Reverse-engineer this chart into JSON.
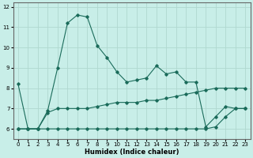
{
  "title": "",
  "xlabel": "Humidex (Indice chaleur)",
  "ylabel": "",
  "background_color": "#c8eee8",
  "grid_color": "#b0d8d0",
  "line_color": "#1a6b5a",
  "xlim": [
    -0.5,
    23.5
  ],
  "ylim": [
    5.5,
    12.2
  ],
  "yticks": [
    6,
    7,
    8,
    9,
    10,
    11,
    12
  ],
  "xticks": [
    0,
    1,
    2,
    3,
    4,
    5,
    6,
    7,
    8,
    9,
    10,
    11,
    12,
    13,
    14,
    15,
    16,
    17,
    18,
    19,
    20,
    21,
    22,
    23
  ],
  "series1_x": [
    0,
    1,
    2,
    3,
    4,
    5,
    6,
    7,
    8,
    9,
    10,
    11,
    12,
    13,
    14,
    15,
    16,
    17,
    18,
    19,
    20,
    21,
    22,
    23
  ],
  "series1_y": [
    8.2,
    6.0,
    6.0,
    6.9,
    9.0,
    11.2,
    11.6,
    11.5,
    10.1,
    9.5,
    8.8,
    8.3,
    8.4,
    8.5,
    9.1,
    8.7,
    8.8,
    8.3,
    8.3,
    6.1,
    6.6,
    7.1,
    7.0,
    7.0
  ],
  "series2_x": [
    0,
    1,
    2,
    3,
    4,
    5,
    6,
    7,
    8,
    9,
    10,
    11,
    12,
    13,
    14,
    15,
    16,
    17,
    18,
    19,
    20,
    21,
    22,
    23
  ],
  "series2_y": [
    6.0,
    6.0,
    6.0,
    6.8,
    7.0,
    7.0,
    7.0,
    7.0,
    7.1,
    7.2,
    7.3,
    7.3,
    7.3,
    7.4,
    7.4,
    7.5,
    7.6,
    7.7,
    7.8,
    7.9,
    8.0,
    8.0,
    8.0,
    8.0
  ],
  "series3_x": [
    0,
    1,
    2,
    3,
    4,
    5,
    6,
    7,
    8,
    9,
    10,
    11,
    12,
    13,
    14,
    15,
    16,
    17,
    18,
    19,
    20,
    21,
    22,
    23
  ],
  "series3_y": [
    6.0,
    6.0,
    6.0,
    6.0,
    6.0,
    6.0,
    6.0,
    6.0,
    6.0,
    6.0,
    6.0,
    6.0,
    6.0,
    6.0,
    6.0,
    6.0,
    6.0,
    6.0,
    6.0,
    6.0,
    6.1,
    6.6,
    7.0,
    7.0
  ]
}
